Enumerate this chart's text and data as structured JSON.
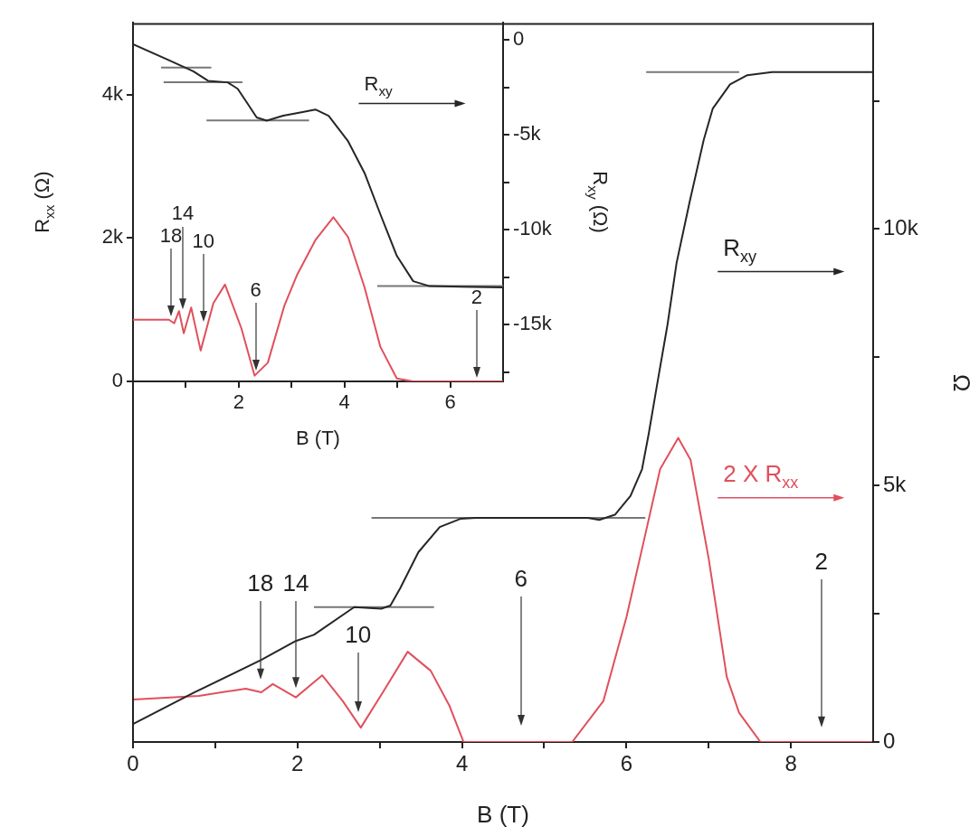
{
  "chart_data": [
    {
      "type": "line",
      "xlabel": "B (T)",
      "ylabel": "Ω",
      "xlim": [
        0,
        9
      ],
      "xticks": [
        0,
        {
          "value": 1,
          "label": null
        },
        2,
        {
          "value": 3,
          "label": null
        },
        4,
        {
          "value": 5,
          "label": null
        },
        6,
        {
          "value": 7,
          "label": null
        },
        8
      ],
      "ylim": [
        0,
        14000
      ],
      "yticks": [
        0,
        {
          "value": 2500,
          "label": null
        },
        {
          "value": 5000,
          "label": "5k"
        },
        {
          "value": 7500,
          "label": null
        },
        {
          "value": 10000,
          "label": "10k"
        },
        {
          "value": 12500,
          "label": null
        }
      ],
      "marker": "none",
      "series": [
        {
          "name": "R$_{xy}$",
          "color": "#262626",
          "x": [
            0,
            0.75,
            1.56,
            1.98,
            2.2,
            2.69,
            3.02,
            3.13,
            3.25,
            3.47,
            3.73,
            3.98,
            4.17,
            5.53,
            5.67,
            5.86,
            6.05,
            6.19,
            6.27,
            6.37,
            6.5,
            6.61,
            6.77,
            6.94,
            7.05,
            7.26,
            7.47,
            7.77,
            9
          ],
          "values": [
            350,
            970,
            1600,
            1970,
            2090,
            2630,
            2600,
            2660,
            3000,
            3700,
            4190,
            4350,
            4370,
            4370,
            4330,
            4430,
            4800,
            5320,
            6000,
            6940,
            8140,
            9340,
            10540,
            11740,
            12350,
            12820,
            13000,
            13060,
            13060
          ]
        },
        {
          "name": "2 X R$_{xx}$",
          "color": "#e0505c",
          "x": [
            0,
            0.8,
            1.37,
            1.56,
            1.7,
            1.98,
            2.3,
            2.55,
            2.77,
            3.05,
            3.34,
            3.62,
            3.85,
            4.02,
            5.34,
            5.72,
            6.0,
            6.23,
            6.41,
            6.63,
            6.78,
            7.0,
            7.22,
            7.37,
            7.63,
            9
          ],
          "values": [
            830,
            900,
            1040,
            970,
            1130,
            870,
            1300,
            800,
            280,
            1000,
            1760,
            1390,
            700,
            0,
            0,
            800,
            2430,
            4050,
            5320,
            5930,
            5500,
            3580,
            1270,
            570,
            0,
            0
          ]
        },
        {
          "color": "#777777",
          "x": [
            2.2,
            3.66
          ],
          "values": [
            2630,
            2630
          ]
        },
        {
          "color": "#777777",
          "x": [
            2.9,
            6.23
          ],
          "values": [
            4370,
            4370
          ]
        },
        {
          "color": "#777777",
          "x": [
            6.24,
            7.37
          ],
          "values": [
            13060,
            13060
          ]
        }
      ],
      "annotations": [
        "18",
        "14",
        "10",
        "6",
        "2"
      ]
    },
    {
      "type": "line",
      "xlabel": "B (T)",
      "ylabel": "R$_{xx}$ (Ω)",
      "y2label": "R$_{xy}$ (Ω)",
      "xlim": [
        0,
        7
      ],
      "xticks": [
        {
          "value": 1,
          "label": null
        },
        2,
        {
          "value": 3,
          "label": null
        },
        4,
        {
          "value": 5,
          "label": null
        },
        6
      ],
      "ylim": [
        0,
        5000
      ],
      "yticks": [
        0,
        {
          "value": 2000,
          "label": "2k"
        },
        {
          "value": 4000,
          "label": "4k"
        }
      ],
      "y2lim": [
        -18000,
        900
      ],
      "y2ticks": [
        0,
        {
          "value": -2500,
          "label": null
        },
        {
          "value": -5000,
          "label": "-5k"
        },
        {
          "value": -7500,
          "label": null
        },
        {
          "value": -10000,
          "label": "-10k"
        },
        {
          "value": -12500,
          "label": null
        },
        {
          "value": -15000,
          "label": "-15k"
        },
        {
          "value": -17500,
          "label": null
        }
      ],
      "marker": "none",
      "series": [
        {
          "name": "R$_{xy}$",
          "color": "#262626",
          "axis": "y2",
          "x": [
            0,
            0.68,
            1.14,
            1.42,
            1.79,
            1.98,
            2.16,
            2.34,
            2.53,
            2.84,
            3.14,
            3.45,
            3.7,
            4.07,
            4.38,
            4.68,
            4.99,
            5.3,
            5.61,
            7
          ],
          "values": [
            -230,
            -1070,
            -1660,
            -2160,
            -2240,
            -2580,
            -3330,
            -4090,
            -4260,
            -4000,
            -3840,
            -3670,
            -4000,
            -5350,
            -7020,
            -9200,
            -11380,
            -12720,
            -12980,
            -13050
          ]
        },
        {
          "color": "#e0505c",
          "x": [
            0,
            0.68,
            0.78,
            0.87,
            0.96,
            1.1,
            1.28,
            1.52,
            1.74,
            2.05,
            2.3,
            2.55,
            2.86,
            3.1,
            3.45,
            3.79,
            4.07,
            4.38,
            4.68,
            4.99,
            5.3,
            7
          ],
          "values": [
            860,
            860,
            810,
            980,
            670,
            1030,
            430,
            1090,
            1350,
            740,
            80,
            260,
            1050,
            1480,
            1970,
            2290,
            2010,
            1310,
            480,
            40,
            0,
            0
          ]
        },
        {
          "color": "#777777",
          "axis": "y2",
          "x": [
            0.53,
            1.48
          ],
          "values": [
            -1460,
            -1460
          ]
        },
        {
          "color": "#777777",
          "axis": "y2",
          "x": [
            0.58,
            2.07
          ],
          "values": [
            -2240,
            -2240
          ]
        },
        {
          "color": "#777777",
          "axis": "y2",
          "x": [
            1.39,
            3.33
          ],
          "values": [
            -4250,
            -4250
          ]
        },
        {
          "color": "#777777",
          "axis": "y2",
          "x": [
            4.62,
            7
          ],
          "values": [
            -12980,
            -12980
          ]
        }
      ],
      "annotations": [
        {
          "text": "18",
          "x": 0.72,
          "y": 860
        },
        {
          "text": "14",
          "x": 0.94,
          "y": 960
        },
        {
          "text": "10",
          "x": 1.33,
          "y": 780
        },
        {
          "text": "6",
          "x": 2.32,
          "y": 100
        },
        {
          "text": "2",
          "x": 6.5,
          "y": 0
        }
      ]
    }
  ]
}
